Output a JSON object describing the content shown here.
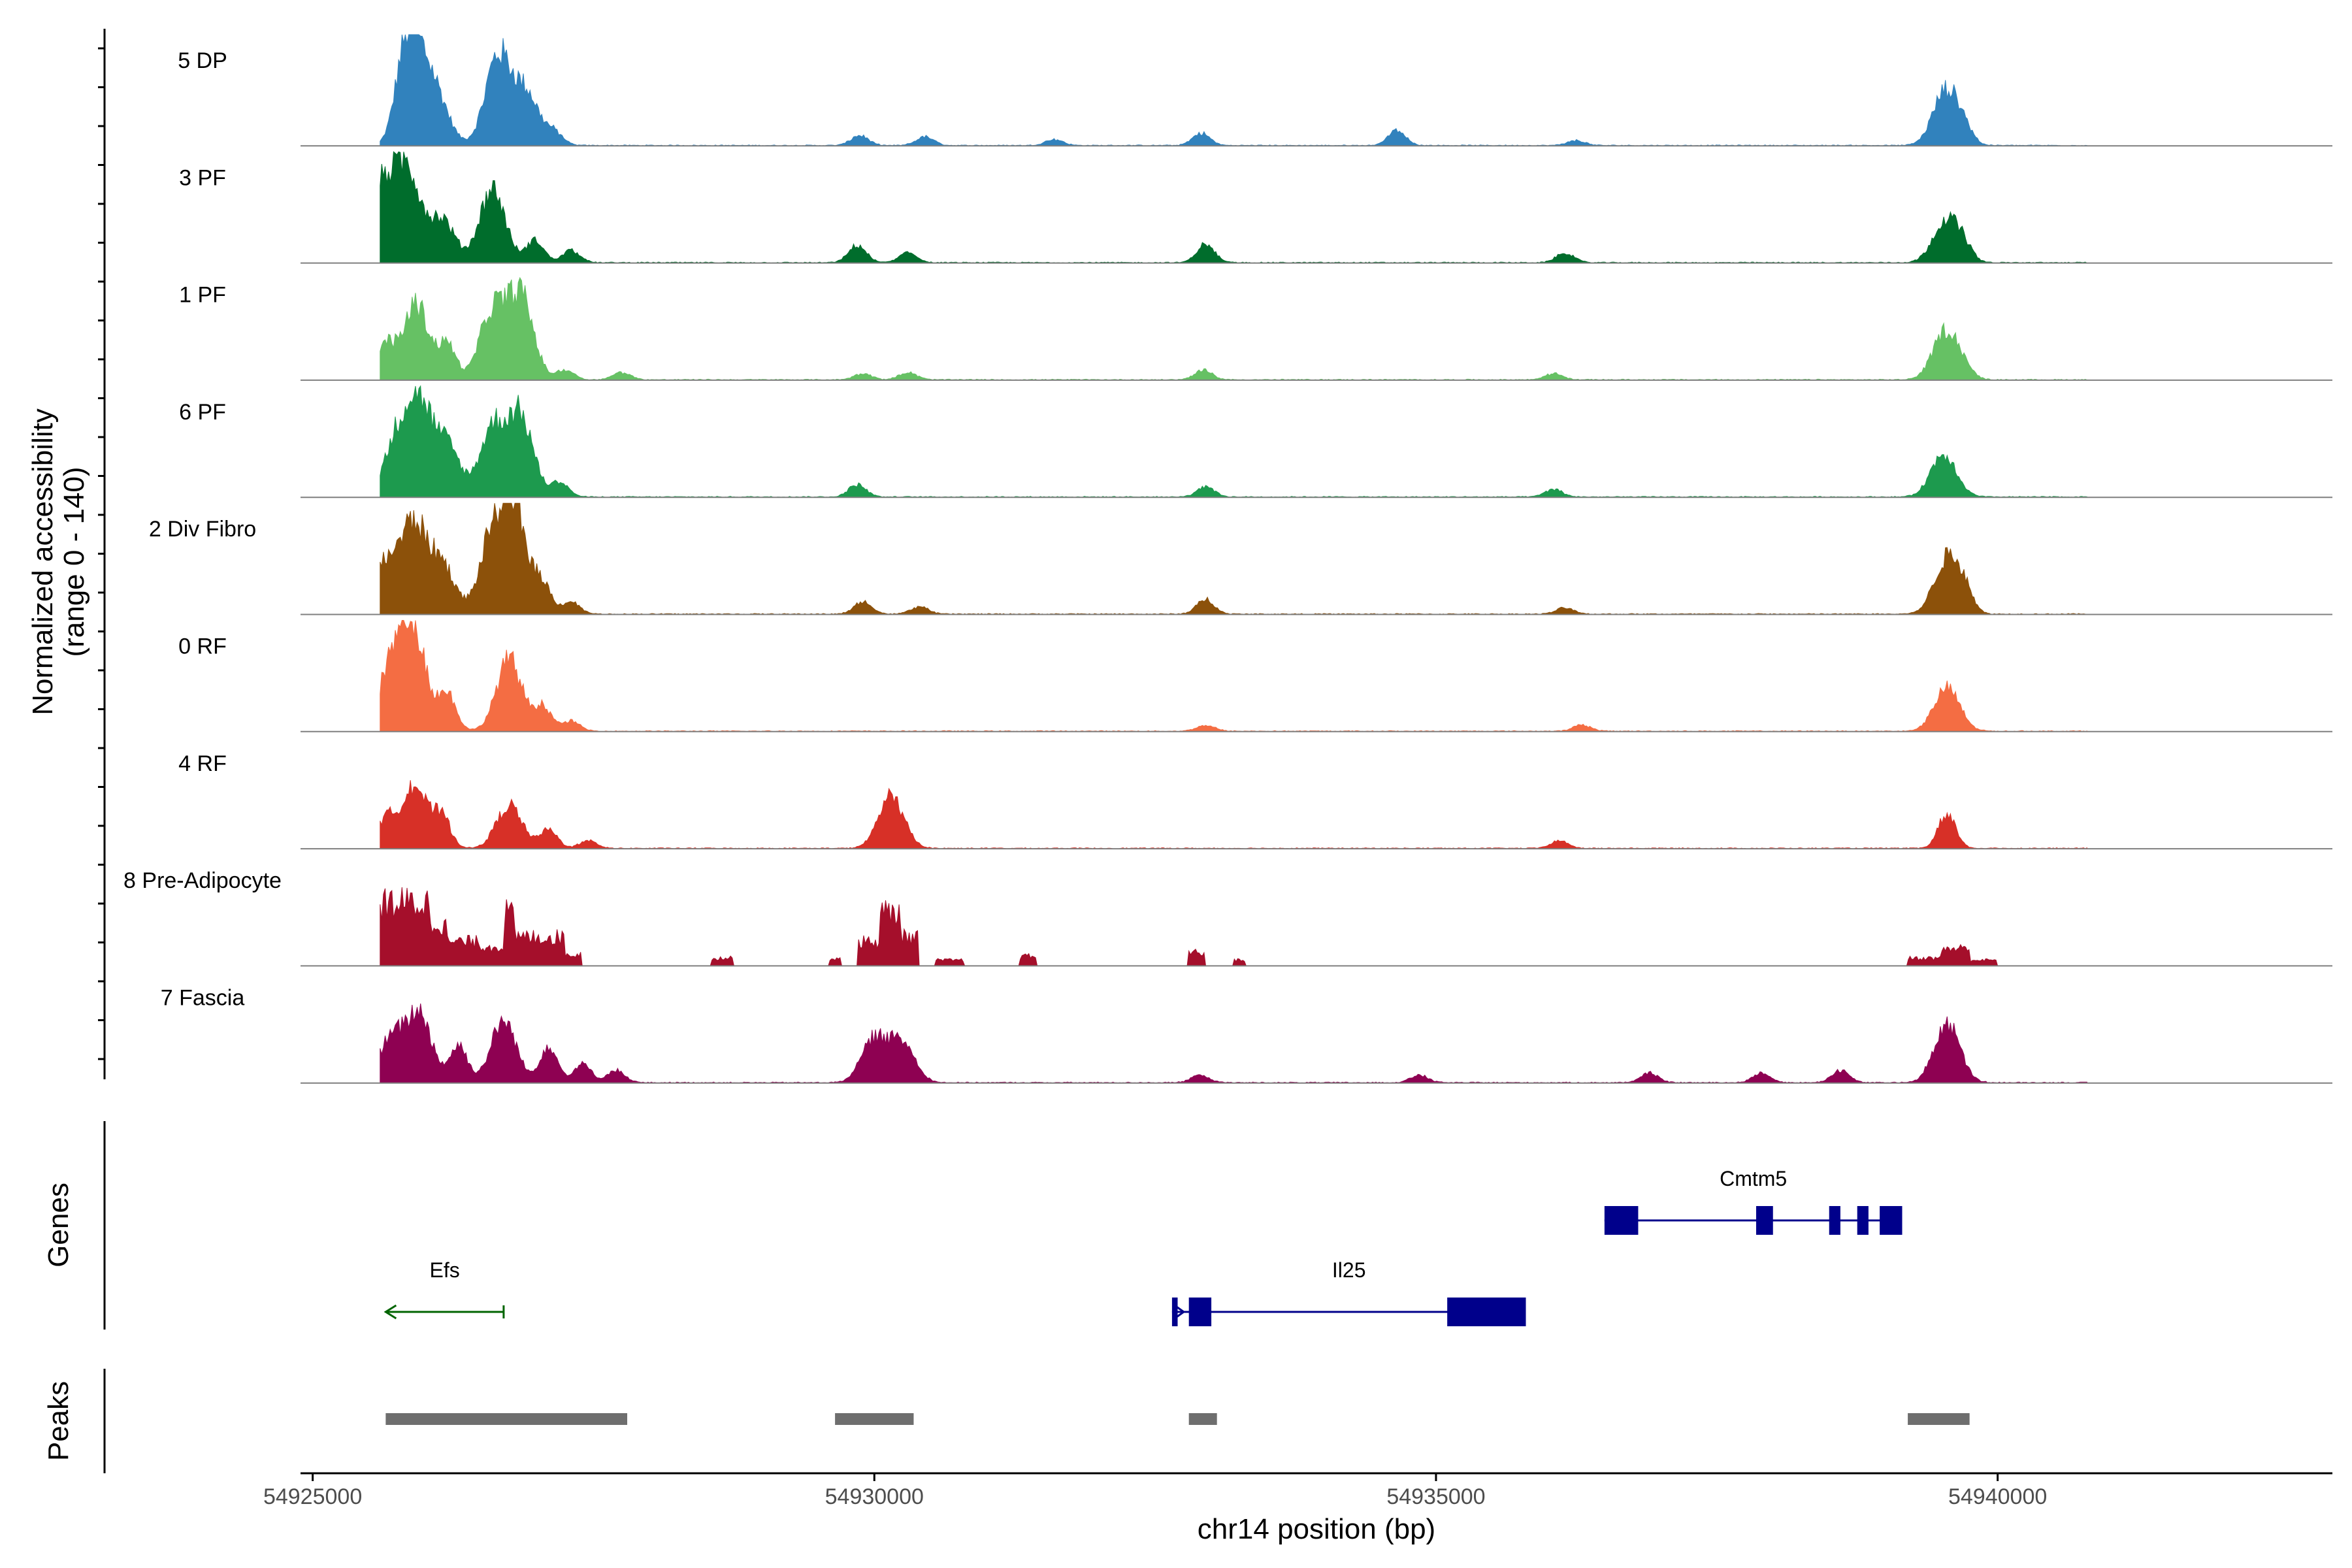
{
  "chart_data": {
    "type": "area",
    "title": "",
    "xlabel": "chr14 position (bp)",
    "ylabel_line1": "Normalized accessibility",
    "ylabel_line2": "(range 0 - 140)",
    "ylim": [
      0,
      140
    ],
    "xlim": [
      54924950,
      54942980
    ],
    "x_ticks": [
      54925000,
      54930000,
      54935000,
      54940000
    ],
    "x_tick_labels": [
      "54925000",
      "54930000",
      "54935000",
      "54940000"
    ],
    "tracks": [
      {
        "name": "5 DP",
        "color": "#3182bd",
        "type": "smooth",
        "max": 90,
        "peaks": [
          [
            54925600,
            54925800,
            30
          ],
          [
            54925950,
            54925900,
            75
          ],
          [
            54926150,
            54926100,
            38
          ],
          [
            54926600,
            54926650,
            72
          ],
          [
            54926800,
            54926900,
            42
          ],
          [
            54927200,
            54927150,
            10
          ],
          [
            54929850,
            54929870,
            8
          ],
          [
            54930550,
            54930450,
            7
          ],
          [
            54931700,
            54931600,
            5
          ],
          [
            54932920,
            54932910,
            10
          ],
          [
            54934650,
            54934650,
            12
          ],
          [
            54936450,
            54936250,
            4
          ],
          [
            54939550,
            54939540,
            45
          ],
          [
            54939700,
            54939700,
            10
          ]
        ]
      },
      {
        "name": "3 PF",
        "color": "#006d2c",
        "type": "smooth",
        "max": 90,
        "peaks": [
          [
            54925650,
            54925620,
            60
          ],
          [
            54925850,
            54925850,
            72
          ],
          [
            54926150,
            54926150,
            35
          ],
          [
            54926550,
            54926600,
            60
          ],
          [
            54926950,
            54926980,
            18
          ],
          [
            54927300,
            54927300,
            10
          ],
          [
            54929850,
            54929850,
            14
          ],
          [
            54930400,
            54930300,
            8
          ],
          [
            54932950,
            54932950,
            15
          ],
          [
            54936100,
            54936150,
            8
          ],
          [
            54939550,
            54939540,
            35
          ],
          [
            54939750,
            54939700,
            10
          ]
        ]
      },
      {
        "name": "1 PF",
        "color": "#66c164",
        "type": "smooth",
        "max": 90,
        "peaks": [
          [
            54925600,
            54925650,
            28
          ],
          [
            54925900,
            54925920,
            62
          ],
          [
            54926250,
            54926200,
            28
          ],
          [
            54926600,
            54926600,
            55
          ],
          [
            54926800,
            54926850,
            68
          ],
          [
            54927200,
            54927250,
            8
          ],
          [
            54927800,
            54927750,
            6
          ],
          [
            54929900,
            54929900,
            5
          ],
          [
            54930300,
            54930300,
            6
          ],
          [
            54932950,
            54932930,
            8
          ],
          [
            54936050,
            54936050,
            5
          ],
          [
            54939550,
            54939540,
            40
          ],
          [
            54939750,
            54939700,
            6
          ]
        ]
      },
      {
        "name": "6 PF",
        "color": "#1d9a4e",
        "type": "smooth",
        "max": 90,
        "peaks": [
          [
            54925700,
            54925750,
            45
          ],
          [
            54925900,
            54925950,
            72
          ],
          [
            54926250,
            54926200,
            40
          ],
          [
            54926550,
            54926600,
            55
          ],
          [
            54926850,
            54926850,
            65
          ],
          [
            54927250,
            54927200,
            12
          ],
          [
            54929900,
            54929850,
            10
          ],
          [
            54932950,
            54932950,
            8
          ],
          [
            54936000,
            54936050,
            6
          ],
          [
            54939550,
            54939520,
            35
          ]
        ]
      },
      {
        "name": "2 Div Fibro",
        "color": "#8c510a",
        "type": "smooth",
        "max": 90,
        "peaks": [
          [
            54925650,
            54925650,
            40
          ],
          [
            54925900,
            54925900,
            70
          ],
          [
            54926150,
            54926150,
            40
          ],
          [
            54926600,
            54926600,
            60
          ],
          [
            54926800,
            54926800,
            80
          ],
          [
            54927050,
            54927050,
            22
          ],
          [
            54927300,
            54927300,
            10
          ],
          [
            54929900,
            54929900,
            10
          ],
          [
            54930400,
            54930400,
            6
          ],
          [
            54932950,
            54932950,
            12
          ],
          [
            54936150,
            54936150,
            5
          ],
          [
            54939550,
            54939550,
            45
          ],
          [
            54939750,
            54939700,
            15
          ]
        ]
      },
      {
        "name": "0 RF",
        "color": "#f46d43",
        "type": "smooth",
        "max": 90,
        "peaks": [
          [
            54925700,
            54925700,
            50
          ],
          [
            54925900,
            54925900,
            80
          ],
          [
            54926200,
            54926200,
            30
          ],
          [
            54926750,
            54926750,
            58
          ],
          [
            54927050,
            54927050,
            20
          ],
          [
            54927300,
            54927300,
            8
          ],
          [
            54932950,
            54932950,
            5
          ],
          [
            54936300,
            54936300,
            5
          ],
          [
            54939550,
            54939550,
            35
          ]
        ]
      },
      {
        "name": "4 RF",
        "color": "#d73027",
        "type": "smooth",
        "max": 90,
        "peaks": [
          [
            54925600,
            54925650,
            22
          ],
          [
            54925900,
            54925900,
            52
          ],
          [
            54926200,
            54926150,
            25
          ],
          [
            54926750,
            54926750,
            35
          ],
          [
            54927100,
            54927100,
            15
          ],
          [
            54927450,
            54927450,
            6
          ],
          [
            54930150,
            54930150,
            42
          ],
          [
            54936100,
            54936100,
            6
          ],
          [
            54939550,
            54939550,
            28
          ]
        ]
      },
      {
        "name": "8 Pre-Adipocyte",
        "color": "#a50f2b",
        "type": "spiky",
        "max": 90,
        "bars": [
          [
            54925600,
            54926050,
            65
          ],
          [
            54926050,
            54926200,
            45
          ],
          [
            54926200,
            54926500,
            25
          ],
          [
            54926500,
            54926700,
            20
          ],
          [
            54926700,
            54926800,
            55
          ],
          [
            54926800,
            54927000,
            30
          ],
          [
            54927000,
            54927250,
            30
          ],
          [
            54927250,
            54927400,
            12
          ],
          [
            54928550,
            54928750,
            8
          ],
          [
            54929600,
            54929700,
            8
          ],
          [
            54929850,
            54930050,
            25
          ],
          [
            54930050,
            54930250,
            55
          ],
          [
            54930250,
            54930400,
            30
          ],
          [
            54930550,
            54930800,
            6
          ],
          [
            54931300,
            54931450,
            10
          ],
          [
            54932800,
            54932950,
            14
          ],
          [
            54933200,
            54933300,
            6
          ],
          [
            54939200,
            54939500,
            8
          ],
          [
            54939500,
            54939750,
            18
          ],
          [
            54939750,
            54940000,
            6
          ]
        ]
      },
      {
        "name": "7 Fascia",
        "color": "#8e0152",
        "type": "smooth",
        "max": 90,
        "peaks": [
          [
            54925700,
            54925700,
            35
          ],
          [
            54925950,
            54925950,
            55
          ],
          [
            54926300,
            54926300,
            30
          ],
          [
            54926700,
            54926700,
            50
          ],
          [
            54927100,
            54927100,
            30
          ],
          [
            54927400,
            54927400,
            15
          ],
          [
            54927700,
            54927700,
            10
          ],
          [
            54930000,
            54930000,
            35
          ],
          [
            54930250,
            54930250,
            32
          ],
          [
            54932900,
            54932900,
            6
          ],
          [
            54934850,
            54934850,
            6
          ],
          [
            54936900,
            54936900,
            8
          ],
          [
            54937900,
            54937900,
            8
          ],
          [
            54938600,
            54938600,
            10
          ],
          [
            54939550,
            54939550,
            48
          ]
        ]
      }
    ],
    "genes": [
      {
        "name": "Efs",
        "strand": "-",
        "color": "#006400",
        "start": 54925650,
        "end": 54926700,
        "row": 1,
        "exons": []
      },
      {
        "name": "Il25",
        "strand": "+",
        "color": "#00008b",
        "start": 54932650,
        "end": 54935800,
        "row": 1,
        "exons": [
          [
            54932650,
            54932700
          ],
          [
            54932800,
            54933000
          ],
          [
            54935100,
            54935800
          ]
        ]
      },
      {
        "name": "Cmtm5",
        "strand": "+",
        "color": "#00008b",
        "start": 54936500,
        "end": 54939150,
        "row": 0,
        "exons": [
          [
            54936500,
            54936800
          ],
          [
            54937850,
            54938000
          ],
          [
            54938500,
            54938600
          ],
          [
            54938750,
            54938850
          ],
          [
            54938950,
            54939150
          ]
        ]
      }
    ],
    "peaks_track": [
      [
        54925650,
        54927800
      ],
      [
        54929650,
        54930350
      ],
      [
        54932800,
        54933050
      ],
      [
        54939200,
        54939750
      ]
    ],
    "panel_labels": {
      "genes": "Genes",
      "peaks": "Peaks"
    }
  },
  "colors": {
    "baseline": "#7f7f7f",
    "peak_bar": "#6e6e6e",
    "axis": "#000000"
  }
}
